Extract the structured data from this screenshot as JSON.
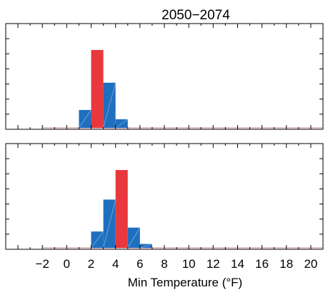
{
  "chart_data": {
    "type": "bar",
    "title": "2050−2074",
    "xlabel": "Min Temperature (°F)",
    "xlim": [
      -5,
      21
    ],
    "x_ticks": [
      -2,
      0,
      2,
      4,
      6,
      8,
      10,
      12,
      14,
      16,
      18,
      20
    ],
    "x_tick_labels": [
      "−2",
      "0",
      "2",
      "4",
      "6",
      "8",
      "10",
      "12",
      "14",
      "16",
      "18",
      "20"
    ],
    "grid": false,
    "colors": {
      "historical": "#1f6fbf",
      "highlight": "#e8383d"
    },
    "panels": [
      {
        "ylim": [
          0,
          1
        ],
        "bars": [
          {
            "x0": 1,
            "x1": 2,
            "value": 0.23,
            "color": "historical"
          },
          {
            "x0": 2,
            "x1": 3,
            "value": 1.0,
            "color": "highlight"
          },
          {
            "x0": 3,
            "x1": 4,
            "value": 0.58,
            "color": "historical"
          },
          {
            "x0": 4,
            "x1": 5,
            "value": 0.11,
            "color": "historical"
          }
        ]
      },
      {
        "ylim": [
          0,
          1
        ],
        "bars": [
          {
            "x0": 2,
            "x1": 3,
            "value": 0.21,
            "color": "historical"
          },
          {
            "x0": 3,
            "x1": 4,
            "value": 0.62,
            "color": "historical"
          },
          {
            "x0": 4,
            "x1": 5,
            "value": 1.0,
            "color": "highlight"
          },
          {
            "x0": 5,
            "x1": 6,
            "value": 0.26,
            "color": "historical"
          },
          {
            "x0": 6,
            "x1": 7,
            "value": 0.05,
            "color": "historical"
          }
        ]
      }
    ]
  }
}
